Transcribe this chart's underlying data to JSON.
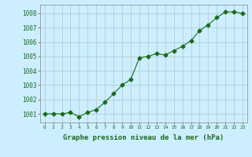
{
  "x": [
    0,
    1,
    2,
    3,
    4,
    5,
    6,
    7,
    8,
    9,
    10,
    11,
    12,
    13,
    14,
    15,
    16,
    17,
    18,
    19,
    20,
    21,
    22,
    23
  ],
  "y": [
    1001.0,
    1001.0,
    1001.0,
    1001.1,
    1000.8,
    1001.1,
    1001.3,
    1001.8,
    1002.4,
    1003.0,
    1003.4,
    1004.9,
    1005.0,
    1005.2,
    1005.1,
    1005.4,
    1005.7,
    1006.1,
    1006.8,
    1007.2,
    1007.7,
    1008.1,
    1008.1,
    1008.0
  ],
  "line_color": "#1a6b1a",
  "marker": "D",
  "marker_size": 2.5,
  "bg_color": "#cceeff",
  "grid_color": "#b0c8c8",
  "xlabel": "Graphe pression niveau de la mer (hPa)",
  "xlabel_color": "#1a6b1a",
  "tick_color": "#1a6b1a",
  "ylabel_ticks": [
    1001,
    1002,
    1003,
    1004,
    1005,
    1006,
    1007,
    1008
  ],
  "ylim": [
    1000.4,
    1008.6
  ],
  "xlim": [
    -0.5,
    23.5
  ]
}
